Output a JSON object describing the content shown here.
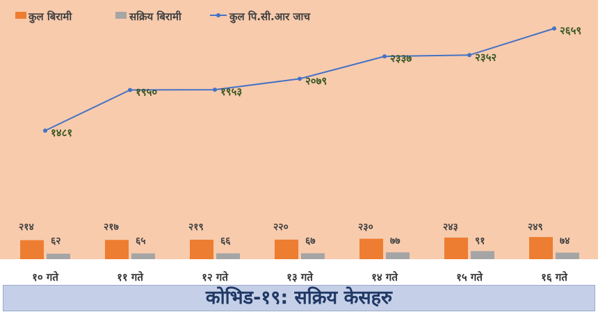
{
  "chart_data": {
    "type": "bar+line",
    "title": "कोभिड-१९: सक्रिय केसहरु",
    "categories": [
      "१० गते",
      "११ गते",
      "१२ गते",
      "१३ गते",
      "१४ गते",
      "१५ गते",
      "१६ गते"
    ],
    "series": [
      {
        "name": "कुल बिरामी",
        "type": "bar",
        "color": "#ed7d31",
        "values": [
          214,
          217,
          219,
          220,
          230,
          243,
          249
        ],
        "labels": [
          "२१४",
          "२१७",
          "२१९",
          "२२०",
          "२३०",
          "२४३",
          "२४९"
        ]
      },
      {
        "name": "सक्रिय बिरामी",
        "type": "bar",
        "color": "#a5a5a5",
        "values": [
          62,
          65,
          66,
          67,
          77,
          91,
          74
        ],
        "labels": [
          "६२",
          "६५",
          "६६",
          "६७",
          "७७",
          "९१",
          "७४"
        ]
      },
      {
        "name": "कुल पि.सी.आर जाच",
        "type": "line",
        "color": "#4472c4",
        "values": [
          1481,
          1950,
          1953,
          2079,
          2337,
          2352,
          2659
        ],
        "labels": [
          "१४८१",
          "१९५०",
          "१९५३",
          "२०७९",
          "२३३७",
          "२३५२",
          "२६५९"
        ]
      }
    ],
    "legend_position": "top-left",
    "grid": false
  },
  "colors": {
    "plot_background": "#f8cbad",
    "label_bar": "#404040",
    "label_line": "#375623"
  }
}
